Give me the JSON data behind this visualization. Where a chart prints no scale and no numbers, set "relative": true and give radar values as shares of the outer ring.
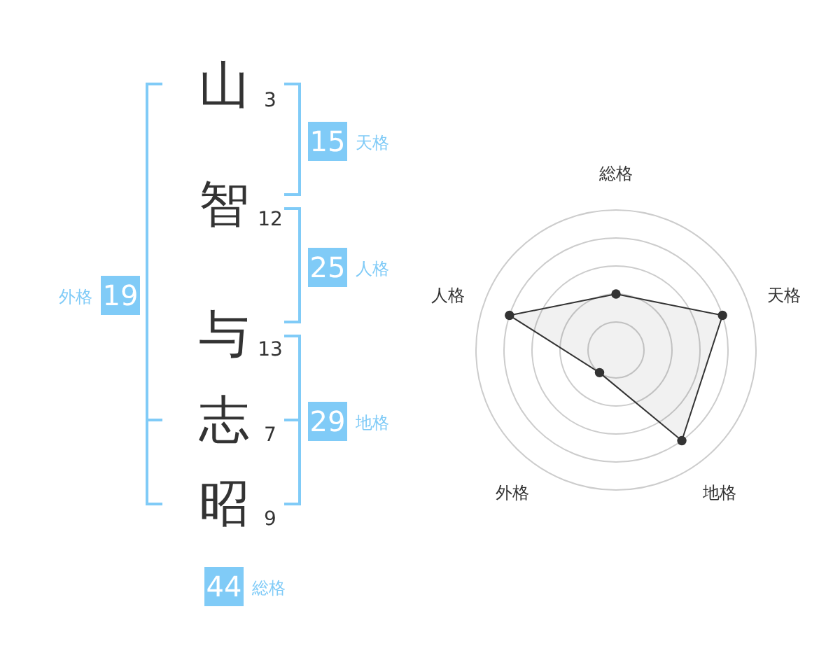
{
  "chart_data": [
    {
      "type": "other",
      "categories": [
        "山",
        "智",
        "与",
        "志",
        "昭"
      ],
      "values": [
        3,
        12,
        13,
        7,
        9
      ],
      "data_labels": true,
      "color": "#80cbf7",
      "annotations": [
        "15",
        "天格",
        "25",
        "人格",
        "29",
        "地格",
        "19",
        "外格",
        "44",
        "総格"
      ]
    },
    {
      "type": "radar",
      "categories": [
        "総格",
        "天格",
        "地格",
        "外格",
        "人格"
      ],
      "relative": true,
      "grid": true,
      "marker": "circle",
      "series": [
        {
          "color": "#333333",
          "values": [
            0.4,
            0.8,
            0.8,
            0.2,
            0.8
          ]
        }
      ]
    }
  ]
}
